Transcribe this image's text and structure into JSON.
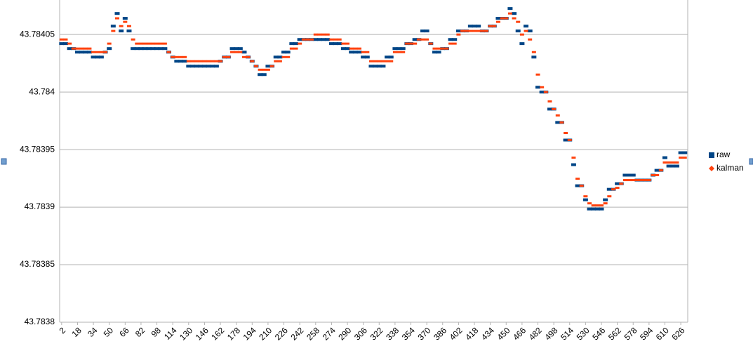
{
  "chart_data": {
    "type": "scatter",
    "x": [
      2,
      6,
      10,
      14,
      18,
      22,
      26,
      30,
      34,
      38,
      42,
      46,
      50,
      54,
      58,
      62,
      66,
      70,
      74,
      78,
      82,
      86,
      90,
      94,
      98,
      102,
      106,
      110,
      114,
      118,
      122,
      126,
      130,
      134,
      138,
      142,
      146,
      150,
      154,
      158,
      162,
      166,
      170,
      174,
      178,
      182,
      186,
      190,
      194,
      198,
      202,
      206,
      210,
      214,
      218,
      222,
      226,
      230,
      234,
      238,
      242,
      246,
      250,
      254,
      258,
      262,
      266,
      270,
      274,
      278,
      282,
      286,
      290,
      294,
      298,
      302,
      306,
      310,
      314,
      318,
      322,
      326,
      330,
      334,
      338,
      342,
      346,
      350,
      354,
      358,
      362,
      366,
      370,
      374,
      378,
      382,
      386,
      390,
      394,
      398,
      402,
      406,
      410,
      414,
      418,
      422,
      426,
      430,
      434,
      438,
      442,
      446,
      450,
      454,
      458,
      462,
      466,
      470,
      474,
      478,
      482,
      486,
      490,
      494,
      498,
      502,
      506,
      510,
      514,
      518,
      522,
      526,
      530,
      534,
      538,
      542,
      546,
      550,
      554,
      558,
      562,
      566,
      570,
      574,
      578,
      582,
      586,
      590,
      594,
      598,
      602,
      606,
      610,
      614,
      618,
      622,
      626,
      630
    ],
    "series": [
      {
        "name": "raw",
        "color": "#004586",
        "marker": "square",
        "values": [
          43.7840421,
          43.7840421,
          43.7840378,
          43.7840378,
          43.7840347,
          43.7840347,
          43.7840347,
          43.7840347,
          43.7840304,
          43.7840304,
          43.7840304,
          43.7840347,
          43.7840378,
          43.7840573,
          43.7840683,
          43.7840531,
          43.7840641,
          43.7840531,
          43.7840378,
          43.7840378,
          43.7840378,
          43.7840378,
          43.7840378,
          43.7840378,
          43.7840378,
          43.7840378,
          43.7840378,
          43.7840347,
          43.7840304,
          43.7840268,
          43.7840268,
          43.7840268,
          43.7840225,
          43.7840225,
          43.7840225,
          43.7840225,
          43.7840225,
          43.7840225,
          43.7840225,
          43.7840225,
          43.7840268,
          43.7840304,
          43.7840304,
          43.7840378,
          43.7840378,
          43.7840378,
          43.7840347,
          43.7840304,
          43.7840268,
          43.7840225,
          43.7840152,
          43.7840152,
          43.7840225,
          43.7840225,
          43.7840304,
          43.7840304,
          43.7840347,
          43.7840347,
          43.7840421,
          43.7840421,
          43.7840457,
          43.7840457,
          43.7840457,
          43.7840457,
          43.7840457,
          43.7840457,
          43.7840457,
          43.7840457,
          43.7840421,
          43.7840421,
          43.7840421,
          43.7840378,
          43.7840378,
          43.7840347,
          43.7840347,
          43.7840347,
          43.7840304,
          43.7840304,
          43.7840225,
          43.7840225,
          43.7840225,
          43.7840225,
          43.7840304,
          43.7840304,
          43.7840378,
          43.7840378,
          43.7840378,
          43.7840421,
          43.7840421,
          43.7840457,
          43.7840457,
          43.7840531,
          43.7840531,
          43.7840421,
          43.7840347,
          43.7840347,
          43.7840378,
          43.7840378,
          43.7840457,
          43.7840457,
          43.7840531,
          43.7840531,
          43.7840531,
          43.7840573,
          43.7840573,
          43.7840573,
          43.7840531,
          43.7840531,
          43.7840573,
          43.7840573,
          43.7840641,
          43.7840641,
          43.7840641,
          43.7840726,
          43.7840683,
          43.7840531,
          43.7840421,
          43.7840573,
          43.7840531,
          43.7840304,
          43.7840042,
          43.784,
          43.784,
          43.7839852,
          43.7839852,
          43.7839736,
          43.7839736,
          43.7839583,
          43.7839583,
          43.7839369,
          43.7839186,
          43.7839186,
          43.7839064,
          43.7838984,
          43.7838984,
          43.7838984,
          43.7838984,
          43.7839064,
          43.7839155,
          43.7839155,
          43.7839204,
          43.7839204,
          43.7839278,
          43.7839278,
          43.7839278,
          43.7839235,
          43.7839235,
          43.7839235,
          43.7839235,
          43.7839278,
          43.783932,
          43.783932,
          43.783943,
          43.7839357,
          43.7839357,
          43.7839357,
          43.7839473,
          43.7839473
        ]
      },
      {
        "name": "kalman",
        "color": "#ff420e",
        "marker": "diamond",
        "values": [
          43.7840457,
          43.7840457,
          43.7840421,
          43.7840378,
          43.7840378,
          43.7840378,
          43.7840378,
          43.7840378,
          43.7840347,
          43.7840347,
          43.7840347,
          43.7840347,
          43.7840421,
          43.7840531,
          43.7840641,
          43.7840573,
          43.784061,
          43.7840573,
          43.7840457,
          43.7840421,
          43.7840421,
          43.7840421,
          43.7840421,
          43.7840421,
          43.7840421,
          43.7840421,
          43.7840421,
          43.7840347,
          43.7840304,
          43.7840304,
          43.7840304,
          43.7840304,
          43.7840268,
          43.7840268,
          43.7840268,
          43.7840268,
          43.7840268,
          43.7840268,
          43.7840268,
          43.7840268,
          43.7840268,
          43.7840304,
          43.7840304,
          43.7840347,
          43.7840347,
          43.7840347,
          43.7840304,
          43.7840304,
          43.7840268,
          43.7840225,
          43.7840194,
          43.7840194,
          43.7840194,
          43.7840225,
          43.7840268,
          43.7840268,
          43.7840304,
          43.7840304,
          43.7840378,
          43.7840378,
          43.7840421,
          43.7840457,
          43.7840457,
          43.7840457,
          43.78405,
          43.78405,
          43.78405,
          43.78405,
          43.7840457,
          43.7840457,
          43.7840457,
          43.7840421,
          43.7840421,
          43.7840378,
          43.7840378,
          43.7840378,
          43.7840347,
          43.7840347,
          43.7840268,
          43.7840268,
          43.7840268,
          43.7840268,
          43.7840268,
          43.7840268,
          43.7840347,
          43.7840347,
          43.7840347,
          43.7840421,
          43.7840421,
          43.7840421,
          43.7840457,
          43.7840457,
          43.7840457,
          43.7840421,
          43.7840378,
          43.7840378,
          43.7840378,
          43.7840378,
          43.7840421,
          43.7840421,
          43.78405,
          43.7840531,
          43.7840531,
          43.7840531,
          43.7840531,
          43.7840531,
          43.7840531,
          43.7840531,
          43.7840573,
          43.7840573,
          43.784061,
          43.7840641,
          43.7840641,
          43.7840683,
          43.7840641,
          43.784061,
          43.78405,
          43.7840531,
          43.7840457,
          43.7840347,
          43.7840152,
          43.7840042,
          43.784,
          43.7839919,
          43.7839852,
          43.7839797,
          43.7839736,
          43.7839644,
          43.7839583,
          43.783943,
          43.7839247,
          43.7839186,
          43.7839094,
          43.7839033,
          43.7839015,
          43.7839015,
          43.7839015,
          43.7839033,
          43.7839094,
          43.7839155,
          43.7839168,
          43.7839204,
          43.7839235,
          43.7839235,
          43.7839235,
          43.7839235,
          43.7839235,
          43.7839235,
          43.7839235,
          43.7839278,
          43.7839278,
          43.783932,
          43.7839388,
          43.7839388,
          43.7839388,
          43.7839388,
          43.783943,
          43.783943
        ]
      }
    ],
    "xlim": [
      0,
      633
    ],
    "xticks": [
      2,
      18,
      34,
      50,
      66,
      82,
      98,
      114,
      130,
      146,
      162,
      178,
      194,
      210,
      226,
      242,
      258,
      274,
      290,
      306,
      322,
      338,
      354,
      370,
      386,
      402,
      418,
      434,
      450,
      466,
      482,
      498,
      514,
      530,
      546,
      562,
      578,
      594,
      610,
      626
    ],
    "ylim": [
      43.7838,
      43.78408
    ],
    "yticks": [
      43.7838,
      43.78385,
      43.7839,
      43.78395,
      43.784,
      43.78405
    ],
    "grid": true,
    "legend": "right"
  }
}
